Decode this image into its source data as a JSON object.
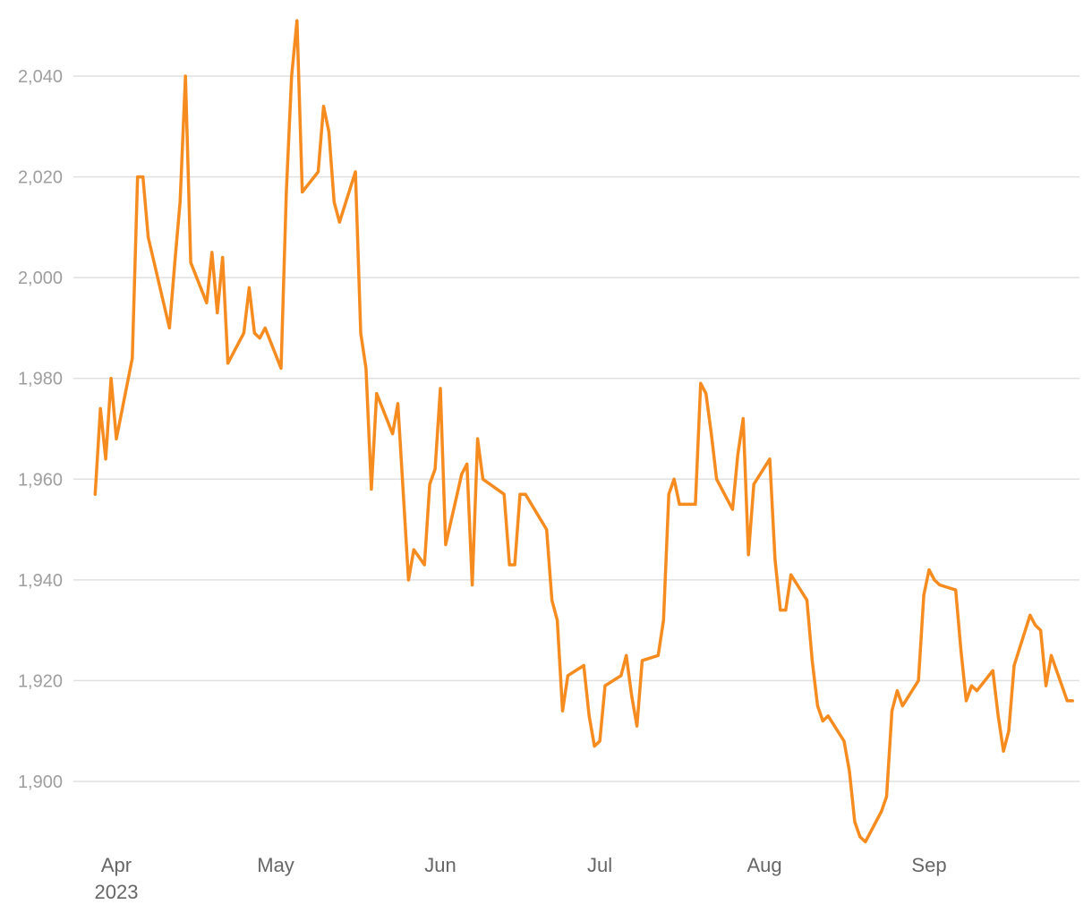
{
  "chart_data": {
    "type": "line",
    "title": "",
    "xlabel": "",
    "ylabel": "",
    "ylim": [
      1887,
      2052
    ],
    "xlim": [
      "2023-03-27",
      "2023-09-27"
    ],
    "grid": "horizontal",
    "line_color": "#f68b1f",
    "y_ticks": [
      {
        "value": 1900,
        "label": "1,900"
      },
      {
        "value": 1920,
        "label": "1,920"
      },
      {
        "value": 1940,
        "label": "1,940"
      },
      {
        "value": 1960,
        "label": "1,960"
      },
      {
        "value": 1980,
        "label": "1,980"
      },
      {
        "value": 2000,
        "label": "2,000"
      },
      {
        "value": 2020,
        "label": "2,020"
      },
      {
        "value": 2040,
        "label": "2,040"
      }
    ],
    "x_ticks": [
      {
        "date": "2023-04-01",
        "label": "Apr",
        "sublabel": "2023"
      },
      {
        "date": "2023-05-01",
        "label": "May"
      },
      {
        "date": "2023-06-01",
        "label": "Jun"
      },
      {
        "date": "2023-07-01",
        "label": "Jul"
      },
      {
        "date": "2023-08-01",
        "label": "Aug"
      },
      {
        "date": "2023-09-01",
        "label": "Sep"
      }
    ],
    "series": [
      {
        "color": "#f68b1f",
        "points": [
          [
            "2023-03-28",
            1957
          ],
          [
            "2023-03-29",
            1974
          ],
          [
            "2023-03-30",
            1964
          ],
          [
            "2023-03-31",
            1980
          ],
          [
            "2023-04-01",
            1968
          ],
          [
            "2023-04-04",
            1984
          ],
          [
            "2023-04-05",
            2020
          ],
          [
            "2023-04-06",
            2020
          ],
          [
            "2023-04-07",
            2008
          ],
          [
            "2023-04-11",
            1990
          ],
          [
            "2023-04-12",
            2003
          ],
          [
            "2023-04-13",
            2015
          ],
          [
            "2023-04-14",
            2040
          ],
          [
            "2023-04-15",
            2003
          ],
          [
            "2023-04-18",
            1995
          ],
          [
            "2023-04-19",
            2005
          ],
          [
            "2023-04-20",
            1993
          ],
          [
            "2023-04-21",
            2004
          ],
          [
            "2023-04-22",
            1983
          ],
          [
            "2023-04-25",
            1989
          ],
          [
            "2023-04-26",
            1998
          ],
          [
            "2023-04-27",
            1989
          ],
          [
            "2023-04-28",
            1988
          ],
          [
            "2023-04-29",
            1990
          ],
          [
            "2023-05-02",
            1982
          ],
          [
            "2023-05-03",
            2017
          ],
          [
            "2023-05-04",
            2040
          ],
          [
            "2023-05-05",
            2051
          ],
          [
            "2023-05-06",
            2017
          ],
          [
            "2023-05-09",
            2021
          ],
          [
            "2023-05-10",
            2034
          ],
          [
            "2023-05-11",
            2029
          ],
          [
            "2023-05-12",
            2015
          ],
          [
            "2023-05-13",
            2011
          ],
          [
            "2023-05-16",
            2021
          ],
          [
            "2023-05-17",
            1989
          ],
          [
            "2023-05-18",
            1982
          ],
          [
            "2023-05-19",
            1958
          ],
          [
            "2023-05-20",
            1977
          ],
          [
            "2023-05-23",
            1969
          ],
          [
            "2023-05-24",
            1975
          ],
          [
            "2023-05-26",
            1940
          ],
          [
            "2023-05-27",
            1946
          ],
          [
            "2023-05-29",
            1943
          ],
          [
            "2023-05-30",
            1959
          ],
          [
            "2023-05-31",
            1962
          ],
          [
            "2023-06-01",
            1978
          ],
          [
            "2023-06-02",
            1947
          ],
          [
            "2023-06-05",
            1961
          ],
          [
            "2023-06-06",
            1963
          ],
          [
            "2023-06-07",
            1939
          ],
          [
            "2023-06-08",
            1968
          ],
          [
            "2023-06-09",
            1960
          ],
          [
            "2023-06-13",
            1957
          ],
          [
            "2023-06-14",
            1943
          ],
          [
            "2023-06-15",
            1943
          ],
          [
            "2023-06-16",
            1957
          ],
          [
            "2023-06-17",
            1957
          ],
          [
            "2023-06-21",
            1950
          ],
          [
            "2023-06-22",
            1936
          ],
          [
            "2023-06-23",
            1932
          ],
          [
            "2023-06-24",
            1914
          ],
          [
            "2023-06-25",
            1921
          ],
          [
            "2023-06-28",
            1923
          ],
          [
            "2023-06-29",
            1913
          ],
          [
            "2023-06-30",
            1907
          ],
          [
            "2023-07-01",
            1908
          ],
          [
            "2023-07-02",
            1919
          ],
          [
            "2023-07-05",
            1921
          ],
          [
            "2023-07-06",
            1925
          ],
          [
            "2023-07-07",
            1917
          ],
          [
            "2023-07-08",
            1911
          ],
          [
            "2023-07-09",
            1924
          ],
          [
            "2023-07-12",
            1925
          ],
          [
            "2023-07-13",
            1932
          ],
          [
            "2023-07-14",
            1957
          ],
          [
            "2023-07-15",
            1960
          ],
          [
            "2023-07-16",
            1955
          ],
          [
            "2023-07-19",
            1955
          ],
          [
            "2023-07-20",
            1979
          ],
          [
            "2023-07-21",
            1977
          ],
          [
            "2023-07-22",
            1969
          ],
          [
            "2023-07-23",
            1960
          ],
          [
            "2023-07-26",
            1954
          ],
          [
            "2023-07-27",
            1965
          ],
          [
            "2023-07-28",
            1972
          ],
          [
            "2023-07-29",
            1945
          ],
          [
            "2023-07-30",
            1959
          ],
          [
            "2023-08-02",
            1964
          ],
          [
            "2023-08-03",
            1944
          ],
          [
            "2023-08-04",
            1934
          ],
          [
            "2023-08-05",
            1934
          ],
          [
            "2023-08-06",
            1941
          ],
          [
            "2023-08-09",
            1936
          ],
          [
            "2023-08-10",
            1924
          ],
          [
            "2023-08-11",
            1915
          ],
          [
            "2023-08-12",
            1912
          ],
          [
            "2023-08-13",
            1913
          ],
          [
            "2023-08-16",
            1908
          ],
          [
            "2023-08-17",
            1902
          ],
          [
            "2023-08-18",
            1892
          ],
          [
            "2023-08-19",
            1889
          ],
          [
            "2023-08-20",
            1888
          ],
          [
            "2023-08-23",
            1894
          ],
          [
            "2023-08-24",
            1897
          ],
          [
            "2023-08-25",
            1914
          ],
          [
            "2023-08-26",
            1918
          ],
          [
            "2023-08-27",
            1915
          ],
          [
            "2023-08-30",
            1920
          ],
          [
            "2023-08-31",
            1937
          ],
          [
            "2023-09-01",
            1942
          ],
          [
            "2023-09-02",
            1940
          ],
          [
            "2023-09-03",
            1939
          ],
          [
            "2023-09-06",
            1938
          ],
          [
            "2023-09-07",
            1926
          ],
          [
            "2023-09-08",
            1916
          ],
          [
            "2023-09-09",
            1919
          ],
          [
            "2023-09-10",
            1918
          ],
          [
            "2023-09-13",
            1922
          ],
          [
            "2023-09-14",
            1913
          ],
          [
            "2023-09-15",
            1906
          ],
          [
            "2023-09-16",
            1910
          ],
          [
            "2023-09-17",
            1923
          ],
          [
            "2023-09-20",
            1933
          ],
          [
            "2023-09-21",
            1931
          ],
          [
            "2023-09-22",
            1930
          ],
          [
            "2023-09-23",
            1919
          ],
          [
            "2023-09-24",
            1925
          ],
          [
            "2023-09-27",
            1916
          ],
          [
            "2023-09-28",
            1916
          ]
        ]
      }
    ]
  }
}
